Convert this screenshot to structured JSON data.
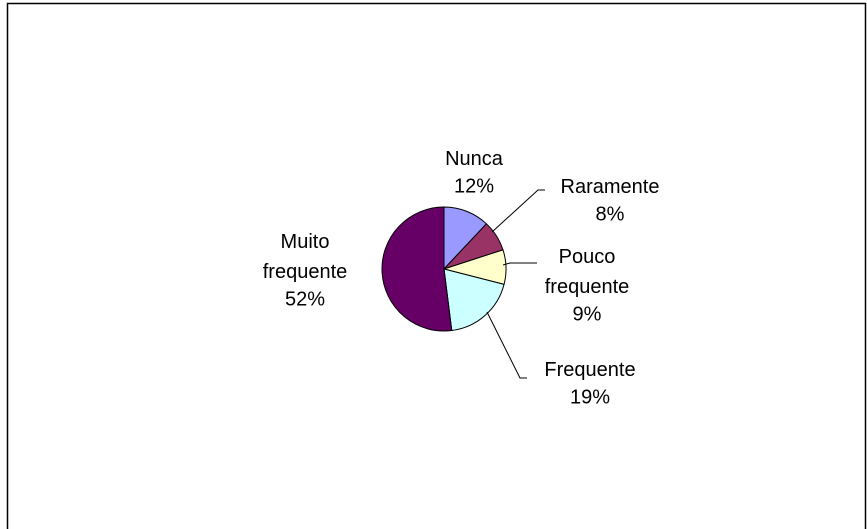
{
  "chart_data": {
    "type": "pie",
    "categories": [
      "Nunca",
      "Raramente",
      "Pouco frequente",
      "Frequente",
      "Muito frequente"
    ],
    "values": [
      12,
      8,
      9,
      19,
      52
    ],
    "value_labels": [
      "12%",
      "8%",
      "9%",
      "19%",
      "52%"
    ],
    "colors": [
      "#9999ff",
      "#993366",
      "#ffffcc",
      "#ccffff",
      "#660066"
    ]
  }
}
